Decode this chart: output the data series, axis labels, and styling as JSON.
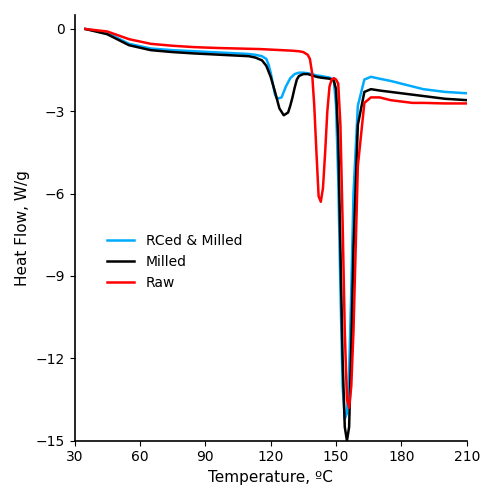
{
  "title": "",
  "xlabel": "Temperature, ºC",
  "ylabel": "Heat Flow, W/g",
  "xlim": [
    30,
    210
  ],
  "ylim": [
    -15,
    0.5
  ],
  "yticks": [
    0,
    -3,
    -6,
    -9,
    -12,
    -15
  ],
  "xticks": [
    30,
    60,
    90,
    120,
    150,
    180,
    210
  ],
  "legend_entries": [
    "RCed & Milled",
    "Milled",
    "Raw"
  ],
  "legend_colors": [
    "#00aaff",
    "#000000",
    "#ff0000"
  ],
  "background_color": "#ffffff",
  "linewidth": 1.8,
  "curves": {
    "blue": {
      "color": "#00aaff",
      "label": "RCed & Milled",
      "x": [
        35,
        45,
        55,
        65,
        75,
        85,
        95,
        105,
        110,
        113,
        116,
        118,
        119,
        120,
        121,
        122,
        123,
        125,
        127,
        129,
        131,
        133,
        135,
        137,
        139,
        141,
        143,
        145,
        147,
        148,
        149,
        150,
        151,
        152,
        153,
        154,
        155,
        156,
        157,
        158,
        160,
        163,
        166,
        170,
        175,
        180,
        185,
        190,
        200,
        210
      ],
      "y": [
        -0.01,
        -0.15,
        -0.55,
        -0.72,
        -0.78,
        -0.82,
        -0.86,
        -0.9,
        -0.92,
        -0.95,
        -1.0,
        -1.1,
        -1.3,
        -1.6,
        -2.0,
        -2.4,
        -2.55,
        -2.5,
        -2.1,
        -1.8,
        -1.65,
        -1.6,
        -1.6,
        -1.62,
        -1.65,
        -1.7,
        -1.72,
        -1.75,
        -1.78,
        -1.82,
        -1.9,
        -2.8,
        -5.5,
        -9.5,
        -13.0,
        -14.2,
        -14.0,
        -12.5,
        -9.5,
        -6.0,
        -2.8,
        -1.85,
        -1.75,
        -1.82,
        -1.9,
        -2.0,
        -2.1,
        -2.2,
        -2.3,
        -2.35
      ]
    },
    "black": {
      "color": "#000000",
      "label": "Milled",
      "x": [
        35,
        45,
        55,
        65,
        75,
        85,
        95,
        105,
        110,
        113,
        116,
        118,
        120,
        122,
        124,
        126,
        128,
        129,
        130,
        131,
        132,
        133,
        135,
        137,
        139,
        141,
        143,
        145,
        147,
        148,
        149,
        150,
        151,
        152,
        153,
        154,
        155,
        156,
        157,
        158,
        160,
        163,
        166,
        170,
        175,
        180,
        185,
        190,
        200,
        210
      ],
      "y": [
        -0.01,
        -0.2,
        -0.6,
        -0.78,
        -0.85,
        -0.9,
        -0.94,
        -0.98,
        -1.0,
        -1.05,
        -1.15,
        -1.35,
        -1.75,
        -2.3,
        -2.9,
        -3.15,
        -3.05,
        -2.8,
        -2.5,
        -2.15,
        -1.85,
        -1.72,
        -1.65,
        -1.65,
        -1.7,
        -1.75,
        -1.78,
        -1.8,
        -1.82,
        -1.85,
        -1.9,
        -2.2,
        -4.0,
        -8.0,
        -12.0,
        -14.5,
        -15.0,
        -14.5,
        -11.5,
        -8.0,
        -3.5,
        -2.3,
        -2.2,
        -2.25,
        -2.3,
        -2.35,
        -2.4,
        -2.45,
        -2.55,
        -2.6
      ]
    },
    "red": {
      "color": "#ff0000",
      "label": "Raw",
      "x": [
        35,
        45,
        55,
        65,
        75,
        85,
        95,
        105,
        110,
        115,
        120,
        125,
        130,
        133,
        135,
        137,
        138,
        139,
        140,
        141,
        142,
        143,
        144,
        145,
        146,
        147,
        148,
        149,
        150,
        151,
        152,
        153,
        154,
        155,
        156,
        157,
        158,
        159,
        160,
        163,
        166,
        170,
        175,
        180,
        185,
        190,
        200,
        210
      ],
      "y": [
        -0.01,
        -0.1,
        -0.38,
        -0.55,
        -0.62,
        -0.67,
        -0.7,
        -0.72,
        -0.73,
        -0.74,
        -0.76,
        -0.78,
        -0.8,
        -0.82,
        -0.85,
        -0.95,
        -1.1,
        -1.6,
        -2.8,
        -4.5,
        -6.1,
        -6.3,
        -5.8,
        -4.5,
        -3.0,
        -2.1,
        -1.85,
        -1.8,
        -1.85,
        -2.0,
        -3.5,
        -7.0,
        -11.0,
        -13.5,
        -13.8,
        -13.0,
        -11.0,
        -8.0,
        -5.0,
        -2.7,
        -2.5,
        -2.5,
        -2.6,
        -2.65,
        -2.7,
        -2.7,
        -2.72,
        -2.72
      ]
    }
  }
}
